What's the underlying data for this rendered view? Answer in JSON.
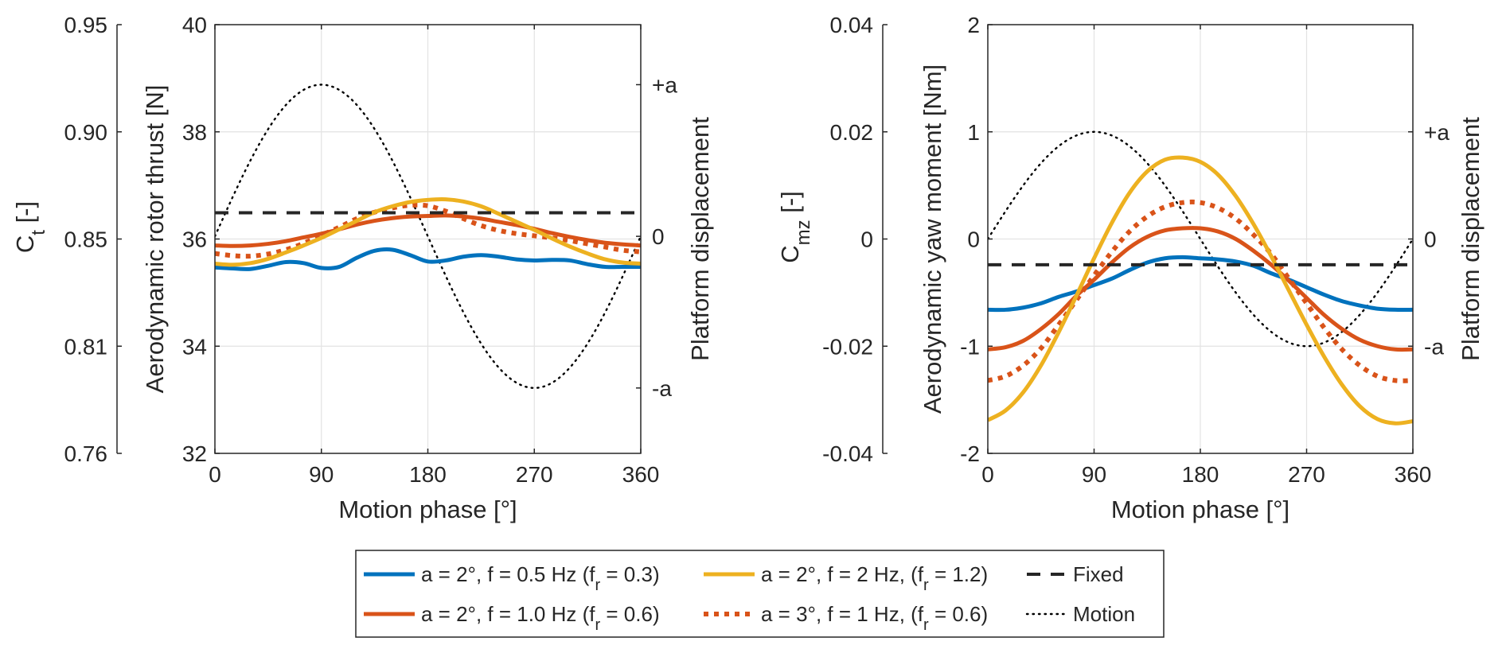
{
  "chart_data": [
    {
      "type": "line",
      "title": "",
      "xlabel": "Motion phase [°]",
      "ylabel": "Aerodynamic rotor thrust [N]",
      "ylabel_outer": "C_t [-]",
      "ylabel_right": "Platform displacement",
      "xlim": [
        0,
        360
      ],
      "ylim": [
        32,
        40
      ],
      "xticks": [
        0,
        90,
        180,
        270,
        360
      ],
      "xtick_labels": [
        "0",
        "90",
        "180",
        "270",
        "360"
      ],
      "yticks": [
        32,
        34,
        36,
        38,
        40
      ],
      "ytick_labels": [
        "32",
        "34",
        "36",
        "38",
        "40"
      ],
      "outer_yticks_labels": [
        "0.76",
        "0.81",
        "0.85",
        "0.90",
        "0.95"
      ],
      "right_ytick_labels": [
        "-a",
        "0",
        "+a"
      ],
      "right_axis_zero_value": 36.05,
      "right_axis_a_value": 2.83,
      "grid": true,
      "x": [
        0,
        15,
        30,
        45,
        60,
        75,
        90,
        105,
        120,
        135,
        150,
        165,
        180,
        195,
        210,
        225,
        240,
        255,
        270,
        285,
        300,
        315,
        330,
        345,
        360
      ],
      "series": [
        {
          "name": "a = 2°, f = 0.5 Hz (f_r = 0.3)",
          "color": "#0072BD",
          "style": "solid",
          "values": [
            35.47,
            35.45,
            35.44,
            35.5,
            35.57,
            35.55,
            35.46,
            35.48,
            35.65,
            35.78,
            35.8,
            35.7,
            35.58,
            35.6,
            35.67,
            35.7,
            35.67,
            35.62,
            35.6,
            35.61,
            35.6,
            35.53,
            35.48,
            35.48,
            35.48
          ]
        },
        {
          "name": "a = 2°, f = 1.0 Hz (f_r = 0.6)",
          "color": "#D95319",
          "style": "solid",
          "values": [
            35.88,
            35.87,
            35.88,
            35.91,
            35.96,
            36.03,
            36.1,
            36.18,
            36.27,
            36.34,
            36.39,
            36.42,
            36.43,
            36.44,
            36.42,
            36.38,
            36.32,
            36.26,
            36.19,
            36.11,
            36.04,
            35.98,
            35.93,
            35.9,
            35.88
          ]
        },
        {
          "name": "a = 2°, f = 2 Hz, (f_r = 1.2)",
          "color": "#EDB120",
          "style": "solid",
          "values": [
            35.54,
            35.52,
            35.55,
            35.63,
            35.75,
            35.88,
            36.02,
            36.18,
            36.34,
            36.5,
            36.61,
            36.69,
            36.73,
            36.74,
            36.7,
            36.61,
            36.47,
            36.32,
            36.17,
            36.01,
            35.86,
            35.73,
            35.62,
            35.56,
            35.54
          ]
        },
        {
          "name": "a = 3°, f = 1 Hz, (f_r = 0.6)",
          "color": "#D95319",
          "style": "dotted",
          "values": [
            35.73,
            35.69,
            35.68,
            35.72,
            35.8,
            35.92,
            36.07,
            36.22,
            36.38,
            36.5,
            36.58,
            36.63,
            36.62,
            36.52,
            36.38,
            36.25,
            36.16,
            36.1,
            36.06,
            36.02,
            35.97,
            35.91,
            35.85,
            35.79,
            35.76
          ]
        },
        {
          "name": "Fixed",
          "color": "#262626",
          "style": "dashed",
          "constant": 36.49
        },
        {
          "name": "Motion",
          "color": "#000000",
          "style": "dotted-thin",
          "function": "sin",
          "axis": "right"
        }
      ]
    },
    {
      "type": "line",
      "title": "",
      "xlabel": "Motion phase [°]",
      "ylabel": "Aerodynamic yaw moment [Nm]",
      "ylabel_outer": "C_mz [-]",
      "ylabel_right": "Platform displacement",
      "xlim": [
        0,
        360
      ],
      "ylim": [
        -2,
        2
      ],
      "xticks": [
        0,
        90,
        180,
        270,
        360
      ],
      "xtick_labels": [
        "0",
        "90",
        "180",
        "270",
        "360"
      ],
      "yticks": [
        -2,
        -1,
        0,
        1,
        2
      ],
      "ytick_labels": [
        "-2",
        "-1",
        "0",
        "1",
        "2"
      ],
      "outer_yticks_labels": [
        "-0.04",
        "-0.02",
        "0",
        "0.02",
        "0.04"
      ],
      "right_ytick_labels": [
        "-a",
        "0",
        "+a"
      ],
      "right_axis_zero_value": 0,
      "right_axis_a_value": 1,
      "grid": true,
      "x": [
        0,
        15,
        30,
        45,
        60,
        75,
        90,
        105,
        120,
        135,
        150,
        165,
        180,
        195,
        210,
        225,
        240,
        255,
        270,
        285,
        300,
        315,
        330,
        345,
        360
      ],
      "series": [
        {
          "name": "a = 2°, f = 0.5 Hz (f_r = 0.3)",
          "color": "#0072BD",
          "style": "solid",
          "values": [
            -0.66,
            -0.66,
            -0.64,
            -0.6,
            -0.54,
            -0.49,
            -0.43,
            -0.37,
            -0.29,
            -0.22,
            -0.18,
            -0.17,
            -0.18,
            -0.19,
            -0.21,
            -0.25,
            -0.32,
            -0.38,
            -0.45,
            -0.52,
            -0.58,
            -0.62,
            -0.65,
            -0.66,
            -0.66
          ]
        },
        {
          "name": "a = 2°, f = 1.0 Hz (f_r = 0.6)",
          "color": "#D95319",
          "style": "solid",
          "values": [
            -1.03,
            -1.01,
            -0.95,
            -0.84,
            -0.7,
            -0.53,
            -0.38,
            -0.22,
            -0.08,
            0.02,
            0.08,
            0.1,
            0.1,
            0.07,
            0.0,
            -0.11,
            -0.24,
            -0.39,
            -0.55,
            -0.71,
            -0.84,
            -0.94,
            -1.0,
            -1.03,
            -1.03
          ]
        },
        {
          "name": "a = 2°, f = 2 Hz, (f_r = 1.2)",
          "color": "#EDB120",
          "style": "solid",
          "values": [
            -1.69,
            -1.6,
            -1.43,
            -1.18,
            -0.87,
            -0.53,
            -0.18,
            0.15,
            0.43,
            0.63,
            0.74,
            0.76,
            0.72,
            0.6,
            0.4,
            0.14,
            -0.16,
            -0.48,
            -0.8,
            -1.1,
            -1.36,
            -1.56,
            -1.68,
            -1.72,
            -1.7
          ]
        },
        {
          "name": "a = 3°, f = 1 Hz, (f_r = 0.6)",
          "color": "#D95319",
          "style": "dotted",
          "values": [
            -1.32,
            -1.28,
            -1.18,
            -1.02,
            -0.8,
            -0.57,
            -0.34,
            -0.12,
            0.07,
            0.21,
            0.3,
            0.34,
            0.34,
            0.29,
            0.19,
            0.04,
            -0.14,
            -0.37,
            -0.6,
            -0.83,
            -1.03,
            -1.18,
            -1.28,
            -1.32,
            -1.32
          ]
        },
        {
          "name": "Fixed",
          "color": "#262626",
          "style": "dashed",
          "constant": -0.24
        },
        {
          "name": "Motion",
          "color": "#000000",
          "style": "dotted-thin",
          "function": "sin",
          "axis": "right"
        }
      ]
    }
  ],
  "legend": {
    "placement": "bottom-center",
    "entries": [
      {
        "text": "a = 2°, f = 0.5 Hz (f",
        "sub": "r",
        "tail": " = 0.3)",
        "color": "#0072BD",
        "style": "solid"
      },
      {
        "text": "a = 2°, f = 2 Hz, (f",
        "sub": "r",
        "tail": " = 1.2)",
        "color": "#EDB120",
        "style": "solid"
      },
      {
        "text": "Fixed",
        "sub": "",
        "tail": "",
        "color": "#262626",
        "style": "dashed"
      },
      {
        "text": "a = 2°, f = 1.0 Hz (f",
        "sub": "r",
        "tail": " = 0.6)",
        "color": "#D95319",
        "style": "solid"
      },
      {
        "text": "a = 3°, f = 1 Hz, (f",
        "sub": "r",
        "tail": " = 0.6)",
        "color": "#D95319",
        "style": "dotted"
      },
      {
        "text": "Motion",
        "sub": "",
        "tail": "",
        "color": "#000000",
        "style": "dotted-thin"
      }
    ]
  },
  "labels": {
    "left_outer_main": "C",
    "left_outer_sub": "t",
    "left_outer_tail": " [-]",
    "right_outer_main": "C",
    "right_outer_sub": "mz",
    "right_outer_tail": " [-]"
  }
}
